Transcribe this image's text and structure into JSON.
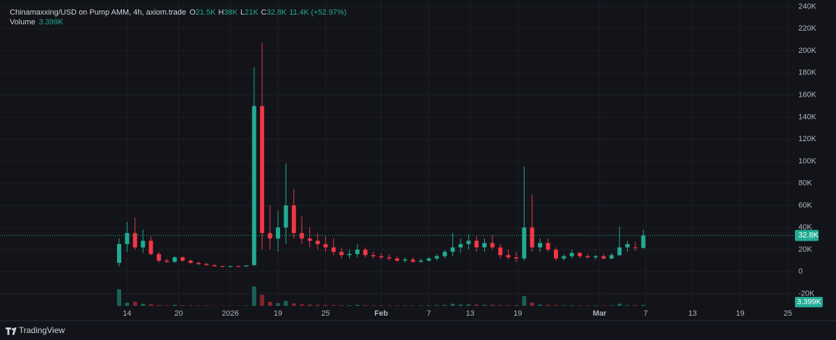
{
  "chart_data": {
    "type": "candlestick",
    "header": {
      "symbol": "Chinamaxxing/USD on Pump AMM, 4h, axiom.trade",
      "fields": [
        {
          "label": "O",
          "value_label": "21.5K"
        },
        {
          "label": "H",
          "value_label": "38K"
        },
        {
          "label": "L",
          "value_label": "21K"
        },
        {
          "label": "C",
          "value_label": "32.8K"
        }
      ],
      "change": "11.4K (+52.97%)",
      "volume_label": "Volume",
      "volume_value": "3.399K"
    },
    "x": [
      15,
      16,
      17,
      18,
      19,
      20,
      21,
      22,
      23,
      24,
      25,
      26,
      27,
      28,
      29,
      30,
      31,
      32,
      33,
      34,
      35,
      36,
      37,
      38,
      39,
      40,
      41,
      42,
      43,
      44,
      45,
      46,
      47,
      48,
      49,
      50,
      51,
      52,
      53,
      54,
      55,
      56,
      57,
      58,
      59,
      60,
      61,
      62,
      63,
      64,
      65,
      66,
      67,
      68,
      69,
      70,
      71,
      72,
      73,
      74,
      75,
      76,
      77,
      78,
      79,
      80,
      81
    ],
    "open": [
      8000,
      25000,
      35000,
      22000,
      28000,
      16000,
      10000,
      9000,
      13000,
      10000,
      8000,
      7000,
      6000,
      5000,
      4500,
      5000,
      4800,
      6000,
      150000,
      35000,
      30000,
      40000,
      60000,
      35000,
      30000,
      28000,
      25000,
      22000,
      18000,
      15000,
      16000,
      20000,
      15000,
      14000,
      13000,
      12000,
      10000,
      11000,
      9000,
      10000,
      12000,
      14000,
      18000,
      22000,
      25000,
      28000,
      22000,
      26000,
      22000,
      15000,
      13000,
      12000,
      40000,
      22000,
      26000,
      20000,
      12000,
      14000,
      17000,
      14000,
      13000,
      14000,
      12000,
      15000,
      22000,
      22000,
      21500
    ],
    "high": [
      30000,
      45000,
      49000,
      38000,
      32000,
      18000,
      12000,
      14000,
      14000,
      11000,
      9000,
      8000,
      6500,
      5500,
      5500,
      5500,
      6000,
      185000,
      207000,
      60000,
      55000,
      98000,
      75000,
      50000,
      40000,
      35000,
      32000,
      30000,
      22000,
      20000,
      25000,
      22000,
      18000,
      17000,
      16000,
      14000,
      13000,
      13000,
      12000,
      13000,
      16000,
      20000,
      35000,
      30000,
      34000,
      32000,
      30000,
      33000,
      25000,
      20000,
      18000,
      95000,
      70000,
      30000,
      30000,
      22000,
      16000,
      20000,
      18000,
      16000,
      15000,
      16000,
      17000,
      41000,
      28000,
      27000,
      38000
    ],
    "low": [
      5000,
      18000,
      20000,
      17000,
      15000,
      8000,
      8000,
      8000,
      9000,
      7000,
      6000,
      5500,
      4500,
      4000,
      4000,
      4200,
      4500,
      5000,
      20000,
      20000,
      18000,
      25000,
      30000,
      25000,
      22000,
      20000,
      18000,
      15000,
      12000,
      12000,
      13000,
      13000,
      12000,
      11000,
      10000,
      9000,
      8000,
      8000,
      8000,
      9000,
      10000,
      12000,
      14000,
      17000,
      20000,
      18000,
      18000,
      20000,
      12000,
      11000,
      9000,
      10000,
      18000,
      18000,
      18000,
      10000,
      10000,
      12000,
      12000,
      12000,
      11000,
      11000,
      11000,
      14000,
      18000,
      19000,
      21000
    ],
    "close": [
      25000,
      35000,
      22000,
      28000,
      16000,
      10000,
      9000,
      13000,
      10000,
      8000,
      7000,
      6000,
      5000,
      4500,
      5000,
      4800,
      5500,
      150000,
      35000,
      30000,
      40000,
      60000,
      35000,
      30000,
      28000,
      25000,
      22000,
      18000,
      15000,
      16000,
      20000,
      15000,
      14000,
      13000,
      12000,
      10000,
      11000,
      9000,
      10000,
      12000,
      14000,
      18000,
      22000,
      25000,
      28000,
      22000,
      26000,
      22000,
      15000,
      13000,
      12000,
      40000,
      22000,
      26000,
      20000,
      12000,
      14000,
      17000,
      14000,
      13000,
      14000,
      12000,
      15000,
      22000,
      25000,
      21500,
      32800
    ],
    "volume": [
      60000,
      12000,
      15000,
      8000,
      6000,
      3000,
      2000,
      4000,
      2500,
      2000,
      1500,
      1500,
      1200,
      1000,
      1000,
      1000,
      1500,
      70000,
      40000,
      15000,
      10000,
      18000,
      9000,
      6000,
      5000,
      4000,
      3500,
      3000,
      2500,
      2500,
      4000,
      2500,
      2000,
      2000,
      1800,
      1500,
      1500,
      1500,
      1500,
      2000,
      3000,
      3500,
      8000,
      5000,
      6000,
      5000,
      4000,
      4500,
      3000,
      2500,
      2500,
      35000,
      12000,
      5000,
      4000,
      3000,
      2000,
      2500,
      2000,
      1800,
      1800,
      1800,
      2000,
      8000,
      3000,
      2500,
      3399
    ],
    "ylim": [
      -31000,
      246000
    ],
    "yticks": [
      {
        "value": -20000,
        "label": "-20K"
      },
      {
        "value": 0,
        "label": "0"
      },
      {
        "value": 20000,
        "label": "20K"
      },
      {
        "value": 40000,
        "label": "40K"
      },
      {
        "value": 60000,
        "label": "60K"
      },
      {
        "value": 80000,
        "label": "80K"
      },
      {
        "value": 100000,
        "label": "100K"
      },
      {
        "value": 120000,
        "label": "120K"
      },
      {
        "value": 140000,
        "label": "140K"
      },
      {
        "value": 160000,
        "label": "160K"
      },
      {
        "value": 180000,
        "label": "180K"
      },
      {
        "value": 200000,
        "label": "200K"
      },
      {
        "value": 220000,
        "label": "220K"
      },
      {
        "value": 240000,
        "label": "240K"
      }
    ],
    "xlim": [
      0,
      100
    ],
    "xticks": [
      {
        "value": 16,
        "label": "14"
      },
      {
        "value": 22.5,
        "label": "20"
      },
      {
        "value": 29,
        "label": "2026"
      },
      {
        "value": 35,
        "label": "19"
      },
      {
        "value": 41,
        "label": "25"
      },
      {
        "value": 48,
        "label": "Feb"
      },
      {
        "value": 54,
        "label": "7"
      },
      {
        "value": 59.2,
        "label": "13"
      },
      {
        "value": 65.2,
        "label": "19"
      },
      {
        "value": 75.5,
        "label": "Mar"
      },
      {
        "value": 81.3,
        "label": "7"
      },
      {
        "value": 87.2,
        "label": "13"
      },
      {
        "value": 93.2,
        "label": "19"
      },
      {
        "value": 99.2,
        "label": "25"
      }
    ],
    "volume_lim": [
      0,
      150000
    ],
    "last_price_label": "32.8K",
    "last_volume_label": "3.399K",
    "up_color": "#22ab94",
    "down_color": "#f23645",
    "grid": true,
    "brand": "TradingView"
  }
}
